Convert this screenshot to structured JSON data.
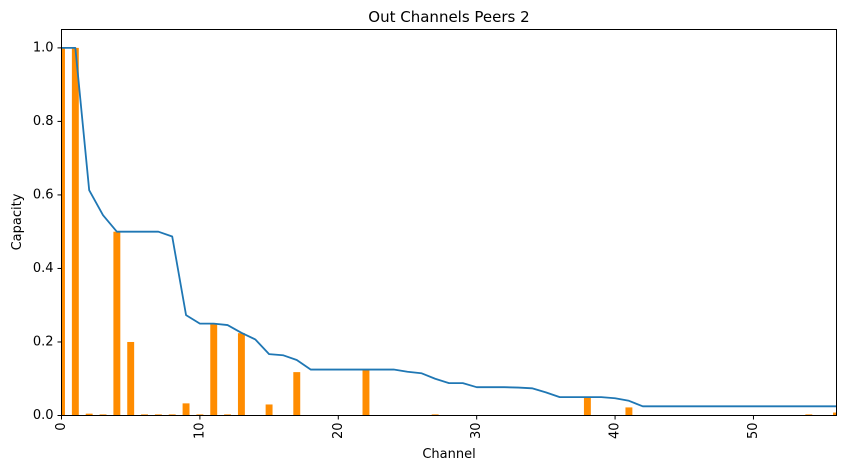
{
  "chart_data": {
    "type": "bar",
    "title": "Out Channels Peers 2",
    "xlabel": "Channel",
    "ylabel": "Capacity",
    "xlim": [
      0,
      56
    ],
    "ylim": [
      0,
      1.05
    ],
    "xticks": [
      0,
      10,
      20,
      30,
      40,
      50
    ],
    "yticks": [
      0.0,
      0.2,
      0.4,
      0.6,
      0.8,
      1.0
    ],
    "xtick_labels": [
      "0",
      "10",
      "20",
      "30",
      "40",
      "50"
    ],
    "ytick_labels": [
      "0.0",
      "0.2",
      "0.4",
      "0.6",
      "0.8",
      "1.0"
    ],
    "grid": false,
    "bar_color": "#ff8c00",
    "line_color": "#1f77b4",
    "bars": {
      "x": [
        0,
        1,
        2,
        3,
        4,
        5,
        6,
        7,
        8,
        9,
        10,
        11,
        12,
        13,
        14,
        15,
        16,
        17,
        18,
        19,
        20,
        21,
        22,
        23,
        24,
        25,
        26,
        27,
        28,
        29,
        30,
        31,
        32,
        33,
        34,
        35,
        36,
        37,
        38,
        39,
        40,
        41,
        42,
        43,
        44,
        45,
        46,
        47,
        48,
        49,
        50,
        51,
        52,
        53,
        54,
        55,
        56
      ],
      "values": [
        1.0,
        1.0,
        0.005,
        0.003,
        0.5,
        0.2,
        0.003,
        0.003,
        0.003,
        0.033,
        0.003,
        0.25,
        0.003,
        0.224,
        0.0,
        0.03,
        0.0,
        0.118,
        0.0,
        0.0,
        0.0,
        0.0,
        0.125,
        0.0,
        0.0,
        0.0,
        0.0,
        0.003,
        0.0,
        0.0,
        0.0,
        0.0,
        0.0,
        0.0,
        0.0,
        0.0,
        0.0,
        0.0,
        0.05,
        0.0,
        0.0,
        0.022,
        0.0,
        0.0,
        0.0,
        0.0,
        0.0,
        0.0,
        0.0,
        0.0,
        0.0,
        0.0,
        0.0,
        0.0,
        0.003,
        0.0,
        0.008
      ]
    },
    "line": {
      "x": [
        0,
        1,
        2,
        3,
        4,
        5,
        6,
        7,
        8,
        9,
        10,
        11,
        12,
        13,
        14,
        15,
        16,
        17,
        18,
        19,
        20,
        21,
        22,
        23,
        24,
        25,
        26,
        27,
        28,
        29,
        30,
        31,
        32,
        33,
        34,
        35,
        36,
        37,
        38,
        39,
        40,
        41,
        42,
        43,
        44,
        45,
        46,
        47,
        48,
        49,
        50,
        51,
        52,
        53,
        54,
        55,
        56
      ],
      "values": [
        1.0,
        1.0,
        0.613,
        0.545,
        0.5,
        0.5,
        0.5,
        0.5,
        0.487,
        0.273,
        0.25,
        0.25,
        0.246,
        0.225,
        0.207,
        0.167,
        0.164,
        0.151,
        0.125,
        0.125,
        0.125,
        0.125,
        0.125,
        0.125,
        0.125,
        0.119,
        0.115,
        0.1,
        0.088,
        0.088,
        0.077,
        0.077,
        0.077,
        0.076,
        0.074,
        0.063,
        0.05,
        0.05,
        0.05,
        0.05,
        0.047,
        0.04,
        0.025,
        0.025,
        0.025,
        0.025,
        0.025,
        0.025,
        0.025,
        0.025,
        0.025,
        0.025,
        0.025,
        0.025,
        0.025,
        0.025,
        0.025
      ]
    }
  }
}
